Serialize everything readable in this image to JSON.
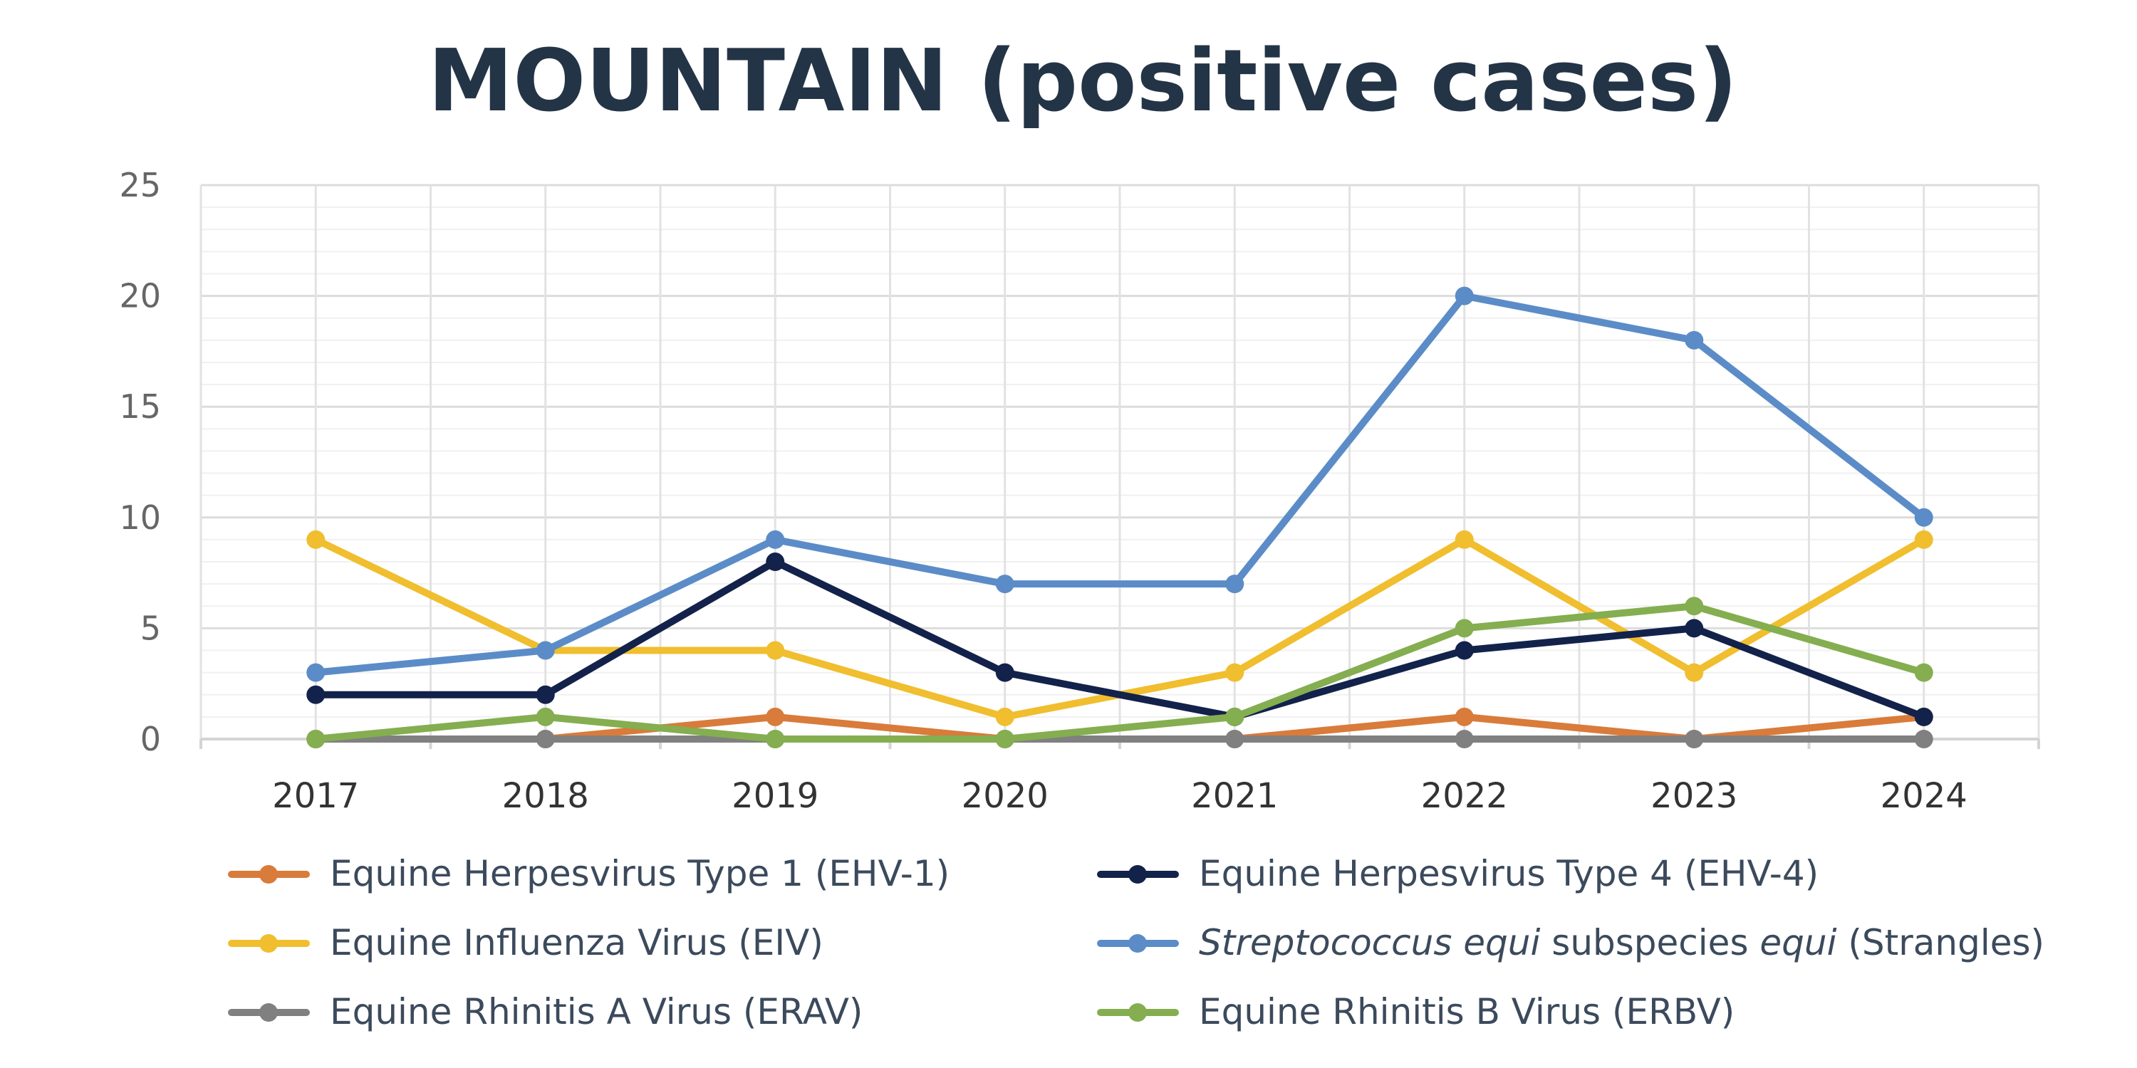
{
  "chart_data": {
    "type": "line",
    "title": "MOUNTAIN (positive cases)",
    "xlabel": "",
    "ylabel": "",
    "ylim": [
      0,
      25
    ],
    "yticks": [
      0,
      5,
      10,
      15,
      20,
      25
    ],
    "categories": [
      "2017",
      "2018",
      "2019",
      "2020",
      "2021",
      "2022",
      "2023",
      "2024"
    ],
    "grid": true,
    "legend_position": "bottom",
    "series": [
      {
        "name": "Equine Herpesvirus Type 1 (EHV-1)",
        "color": "#D97B3A",
        "values": [
          0,
          0,
          1,
          0,
          0,
          1,
          0,
          1
        ]
      },
      {
        "name": "Equine Herpesvirus Type 4 (EHV-4)",
        "color": "#13224A",
        "values": [
          2,
          2,
          8,
          3,
          1,
          4,
          5,
          1
        ]
      },
      {
        "name": "Equine Influenza Virus (EIV)",
        "color": "#F0BE2E",
        "values": [
          9,
          4,
          4,
          1,
          3,
          9,
          3,
          9
        ]
      },
      {
        "name": "Streptococcus equi subspecies equi (Strangles)",
        "name_parts": [
          {
            "text": "Streptococcus equi",
            "italic": true
          },
          {
            "text": " subspecies ",
            "italic": false
          },
          {
            "text": "equi",
            "italic": true
          },
          {
            "text": " (Strangles)",
            "italic": false
          }
        ],
        "color": "#5B8CC7",
        "values": [
          3,
          4,
          9,
          7,
          7,
          20,
          18,
          10
        ]
      },
      {
        "name": "Equine Rhinitis A Virus (ERAV)",
        "color": "#808080",
        "values": [
          0,
          0,
          0,
          0,
          0,
          0,
          0,
          0
        ]
      },
      {
        "name": "Equine Rhinitis B Virus (ERBV)",
        "color": "#84AE50",
        "values": [
          0,
          1,
          0,
          0,
          1,
          5,
          6,
          3
        ]
      }
    ]
  }
}
